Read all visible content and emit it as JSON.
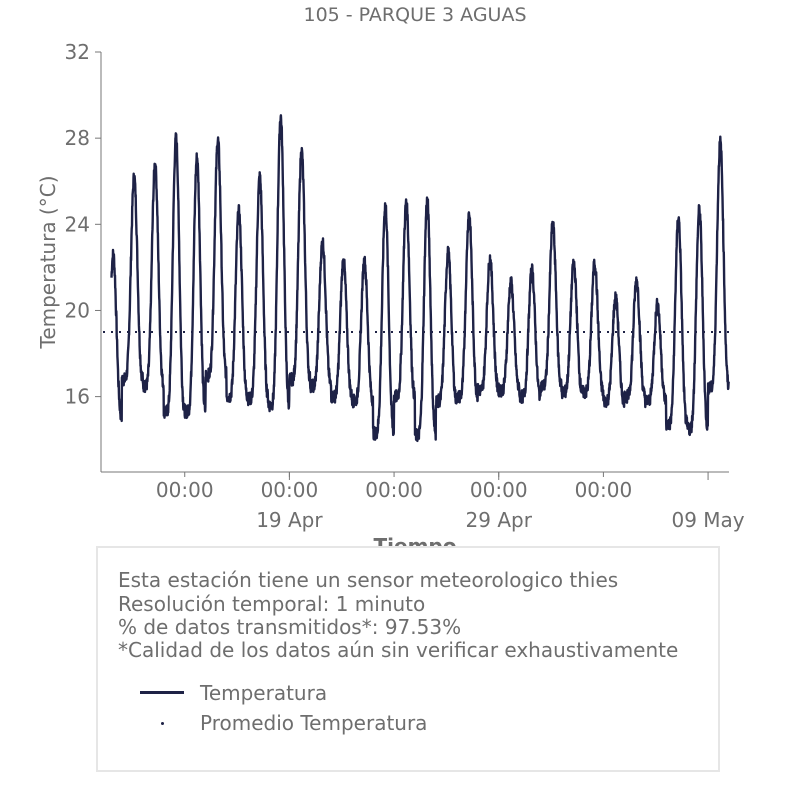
{
  "chart_data": {
    "type": "line",
    "title": "105 - PARQUE 3 AGUAS",
    "xlabel": "Tiempo",
    "ylabel": "Temperatura (°C)",
    "ylim": [
      12.5,
      32
    ],
    "yticks": [
      16,
      20,
      24,
      28,
      32
    ],
    "xlim": [
      "2024-04-10T00:00",
      "2024-05-10T00:00"
    ],
    "xticks_top": [
      "00:00",
      "00:00",
      "00:00",
      "00:00",
      "00:00"
    ],
    "xticks_bottom": [
      "19 Apr",
      "29 Apr",
      "09 May"
    ],
    "grid": false,
    "series": [
      {
        "name": "Temperatura",
        "style": "solid",
        "color": "#1e2246",
        "x": [
          "2024-04-10",
          "2024-04-11",
          "2024-04-12",
          "2024-04-13",
          "2024-04-14",
          "2024-04-15",
          "2024-04-16",
          "2024-04-17",
          "2024-04-18",
          "2024-04-19",
          "2024-04-20",
          "2024-04-21",
          "2024-04-22",
          "2024-04-23",
          "2024-04-24",
          "2024-04-25",
          "2024-04-26",
          "2024-04-27",
          "2024-04-28",
          "2024-04-29",
          "2024-04-30",
          "2024-05-01",
          "2024-05-02",
          "2024-05-03",
          "2024-05-04",
          "2024-05-05",
          "2024-05-06",
          "2024-05-07",
          "2024-05-08",
          "2024-05-09"
        ],
        "daily_min": [
          15.0,
          16.8,
          16.5,
          15.3,
          15.3,
          17.0,
          16.0,
          15.9,
          15.6,
          16.8,
          16.5,
          16.0,
          15.8,
          14.3,
          16.0,
          14.2,
          15.8,
          16.0,
          16.3,
          16.3,
          16.0,
          16.5,
          16.2,
          16.2,
          15.8,
          16.0,
          15.8,
          14.7,
          14.5,
          16.4
        ],
        "daily_max": [
          22.6,
          26.2,
          26.8,
          28.0,
          27.1,
          27.9,
          24.6,
          26.2,
          29.0,
          27.4,
          23.2,
          22.3,
          22.3,
          24.9,
          25.0,
          25.1,
          22.7,
          24.5,
          22.4,
          21.3,
          21.9,
          24.0,
          22.2,
          22.2,
          20.6,
          21.4,
          20.3,
          24.3,
          24.7,
          27.8
        ]
      },
      {
        "name": "Promedio Temperatura",
        "style": "dotted",
        "color": "#1e2246",
        "value": 19.0
      }
    ],
    "legend": {
      "placement": "below",
      "entries": [
        "Temperatura",
        "Promedio Temperatura"
      ]
    }
  },
  "info": {
    "line1": "Esta estación tiene un sensor meteorologico thies",
    "line2": "Resolución temporal: 1 minuto",
    "line3": "% de datos transmitidos*: 97.53%",
    "line4": "*Calidad de los datos aún sin verificar exhaustivamente"
  }
}
